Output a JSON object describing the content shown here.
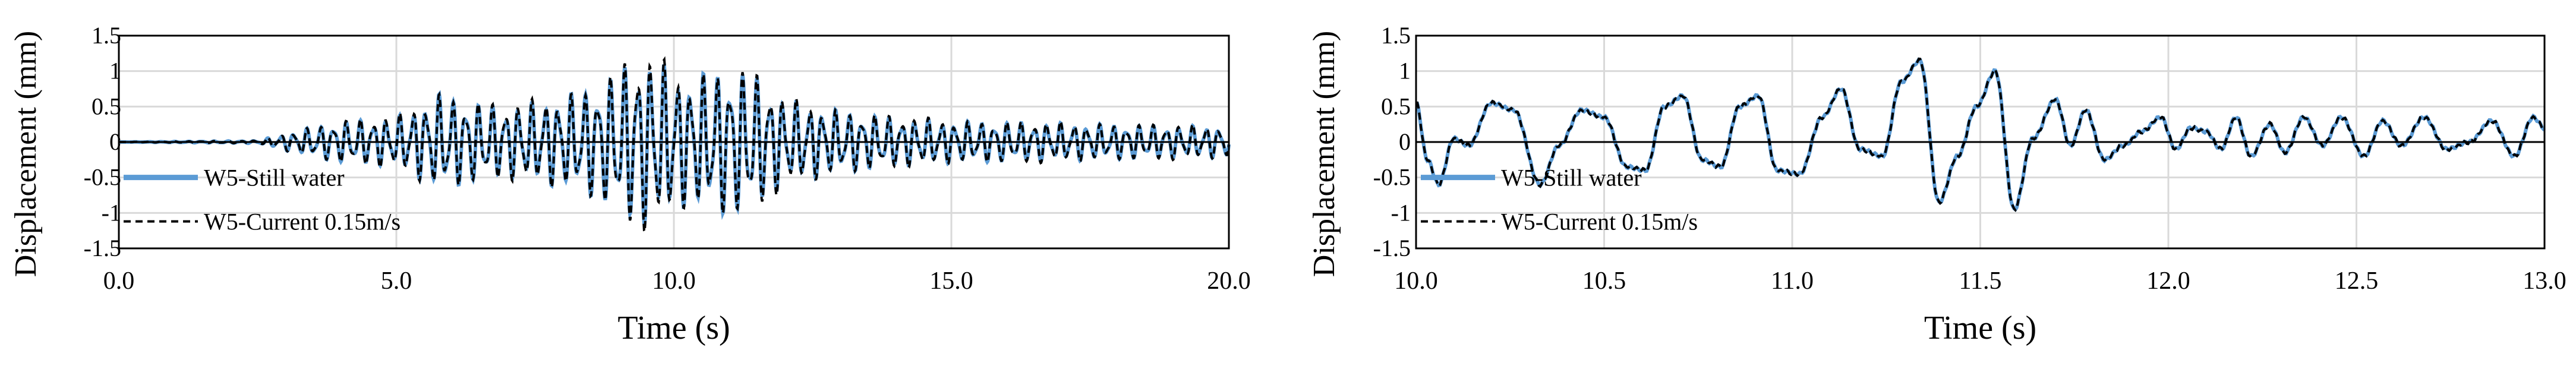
{
  "chart_data": [
    {
      "type": "line",
      "xlabel": "Time (s)",
      "ylabel": "Displacement (mm)",
      "xlim": [
        0,
        20
      ],
      "ylim": [
        -1.5,
        1.5
      ],
      "xticks": [
        "0.0",
        "5.0",
        "10.0",
        "15.0",
        "20.0"
      ],
      "yticks": [
        "1.5",
        "1",
        "0.5",
        "0",
        "-0.5",
        "-1",
        "-1.5"
      ],
      "grid": true,
      "legend_position": "lower-left",
      "series": [
        {
          "name": "W5-Still water",
          "color": "#5b9bd5",
          "style": "solid"
        },
        {
          "name": "W5-Current 0.15m/s",
          "color": "#000000",
          "style": "dashed"
        }
      ],
      "envelope": {
        "x": [
          0,
          2.5,
          3.0,
          3.5,
          4.0,
          5.0,
          5.8,
          6.5,
          7.0,
          8.0,
          8.7,
          9.2,
          9.6,
          10.2,
          10.8,
          11.4,
          12.0,
          13.0,
          14.0,
          15.0,
          16.5,
          18.0,
          20.0
        ],
        "amp": [
          0,
          0.02,
          0.12,
          0.22,
          0.3,
          0.35,
          0.7,
          0.55,
          0.5,
          0.65,
          0.85,
          1.15,
          1.2,
          0.9,
          1.05,
          1.0,
          0.6,
          0.45,
          0.35,
          0.3,
          0.28,
          0.25,
          0.22
        ]
      },
      "dominant_frequency_hz": 4.2
    },
    {
      "type": "line",
      "xlabel": "Time (s)",
      "ylabel": "Displacement (mm)",
      "xlim": [
        10,
        13
      ],
      "ylim": [
        -1.5,
        1.5
      ],
      "xticks": [
        "10.0",
        "10.5",
        "11.0",
        "11.5",
        "12.0",
        "12.5",
        "13.0"
      ],
      "yticks": [
        "1.5",
        "1",
        "0.5",
        "0",
        "-0.5",
        "-1",
        "-1.5"
      ],
      "grid": true,
      "legend_position": "lower-left",
      "series": [
        {
          "name": "W5-Still water",
          "color": "#5b9bd5",
          "style": "solid"
        },
        {
          "name": "W5-Current 0.15m/s",
          "color": "#000000",
          "style": "dashed"
        }
      ],
      "points": {
        "x": [
          10.0,
          10.03,
          10.06,
          10.1,
          10.14,
          10.2,
          10.26,
          10.33,
          10.38,
          10.44,
          10.5,
          10.56,
          10.61,
          10.66,
          10.71,
          10.76,
          10.81,
          10.86,
          10.91,
          10.96,
          11.02,
          11.08,
          11.13,
          11.18,
          11.24,
          11.29,
          11.34,
          11.39,
          11.44,
          11.49,
          11.54,
          11.59,
          11.64,
          11.7,
          11.74,
          11.78,
          11.83,
          11.88,
          11.93,
          11.98,
          12.02,
          12.06,
          12.1,
          12.14,
          12.18,
          12.22,
          12.27,
          12.31,
          12.36,
          12.41,
          12.46,
          12.52,
          12.57,
          12.62,
          12.68,
          12.74,
          12.8,
          12.86,
          12.92,
          12.97,
          13.0
        ],
        "y": [
          0.55,
          -0.25,
          -0.6,
          0.05,
          -0.05,
          0.55,
          0.45,
          -0.6,
          -0.05,
          0.45,
          0.35,
          -0.35,
          -0.4,
          0.5,
          0.65,
          -0.25,
          -0.35,
          0.5,
          0.65,
          -0.4,
          -0.45,
          0.35,
          0.75,
          -0.1,
          -0.2,
          0.85,
          1.15,
          -0.85,
          -0.2,
          0.5,
          1.0,
          -0.95,
          0.05,
          0.6,
          -0.05,
          0.45,
          -0.25,
          -0.05,
          0.15,
          0.35,
          -0.1,
          0.2,
          0.15,
          -0.1,
          0.35,
          -0.2,
          0.25,
          -0.15,
          0.35,
          -0.05,
          0.35,
          -0.2,
          0.3,
          -0.05,
          0.35,
          -0.1,
          0.0,
          0.3,
          -0.2,
          0.35,
          0.2
        ]
      }
    }
  ]
}
